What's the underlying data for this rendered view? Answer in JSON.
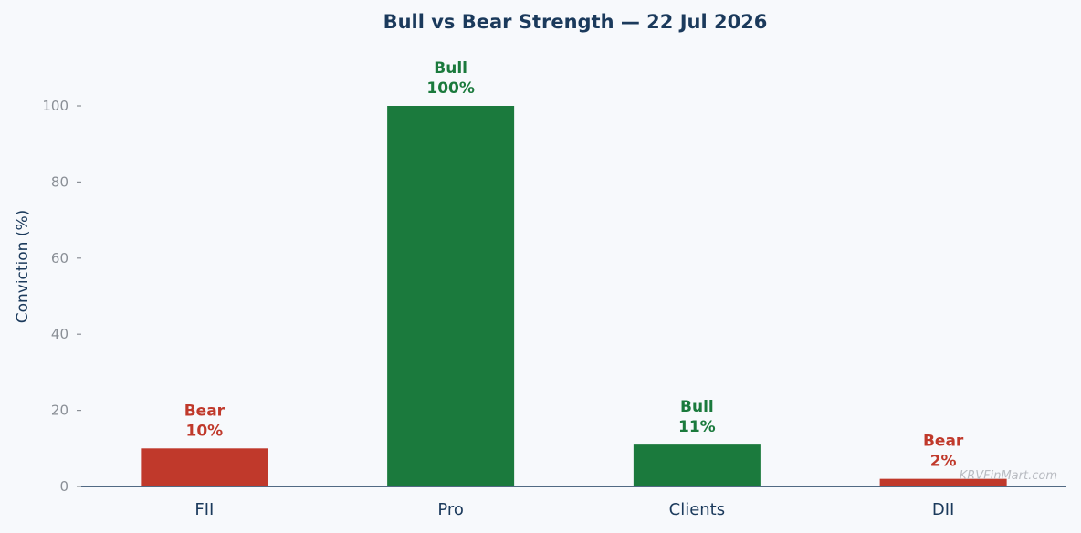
{
  "chart_data": {
    "type": "bar",
    "title": "Bull vs Bear Strength — 22 Jul 2026",
    "xlabel": "",
    "ylabel": "Conviction (%)",
    "ylim": [
      0,
      110
    ],
    "yticks": [
      0,
      20,
      40,
      60,
      80,
      100
    ],
    "categories": [
      "FII",
      "Pro",
      "Clients",
      "DII"
    ],
    "values": [
      10,
      100,
      11,
      2
    ],
    "stances": [
      "Bear",
      "Bull",
      "Bull",
      "Bear"
    ],
    "value_labels": [
      "10%",
      "100%",
      "11%",
      "2%"
    ],
    "grid": false,
    "legend": "none",
    "watermark": "KRVFinMart.com",
    "colors": {
      "bull": "#1b7a3d",
      "bear": "#c0392b",
      "title": "#1b3a5c",
      "axis": "#1b3a5c",
      "tick_text": "#8a8f96",
      "background": "#f7f9fc"
    }
  }
}
